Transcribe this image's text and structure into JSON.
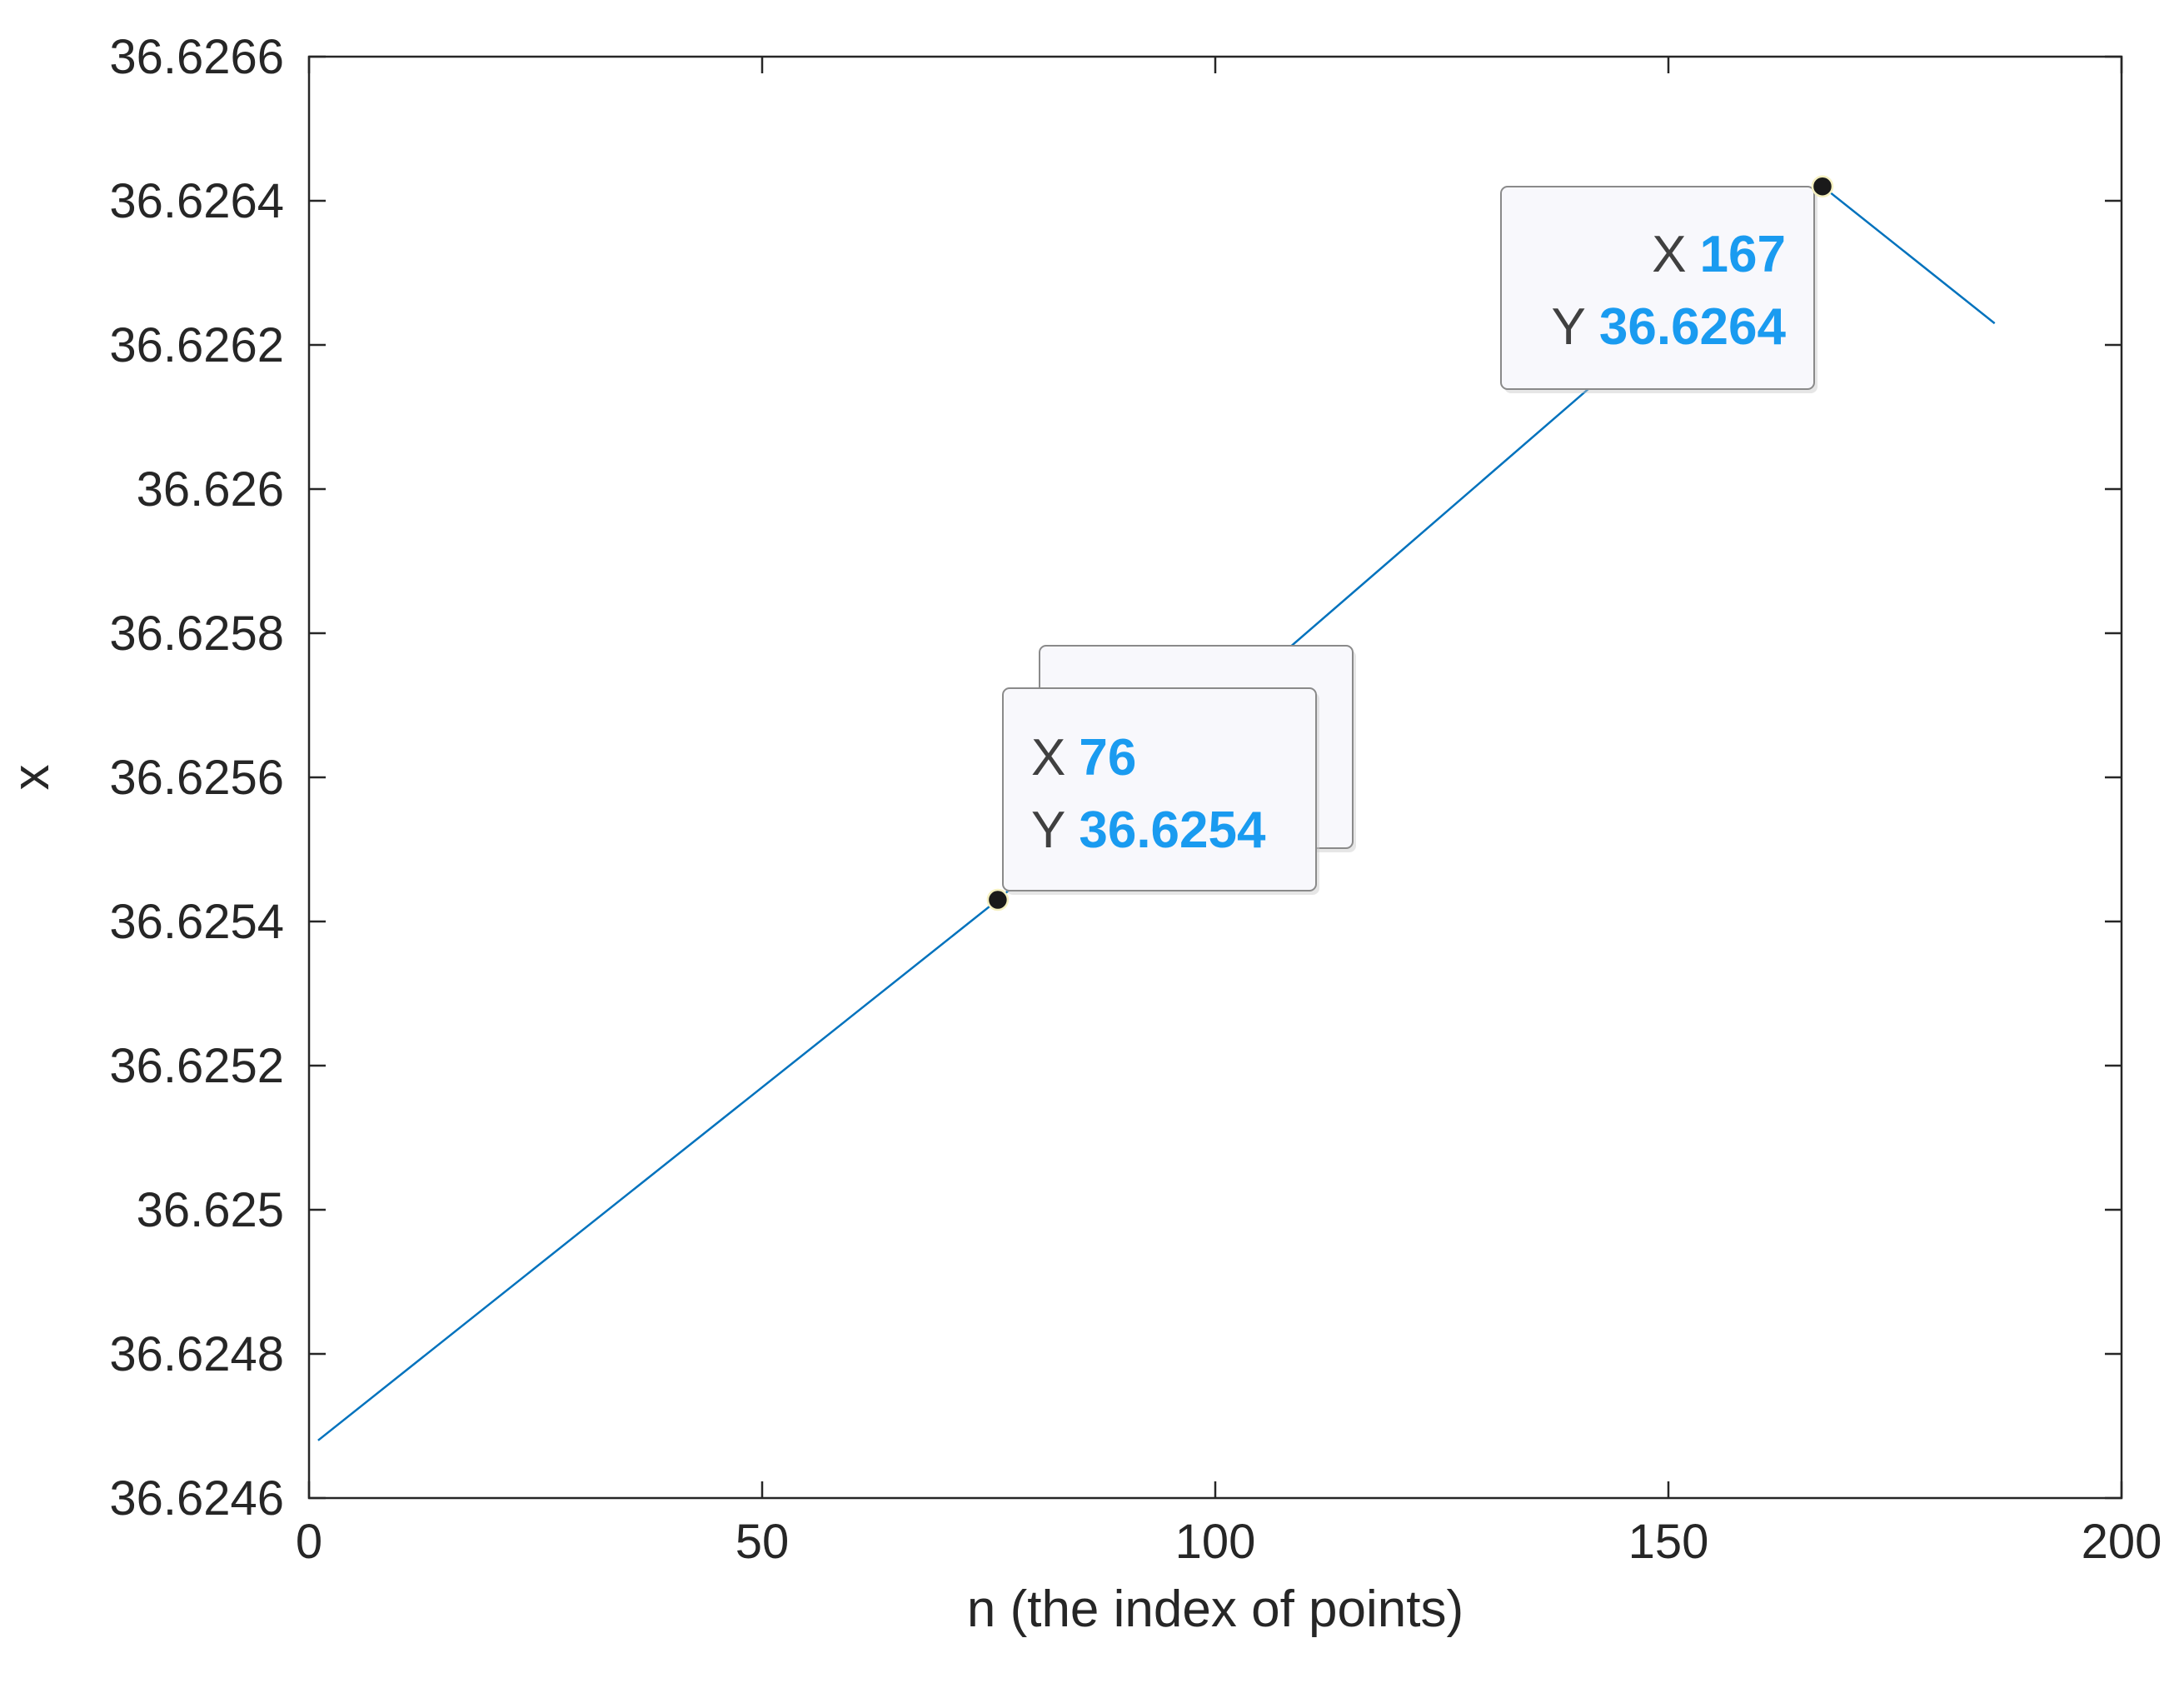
{
  "chart_data": {
    "type": "line",
    "title": "",
    "xlabel": "n (the index of points)",
    "ylabel": "x",
    "xlim": [
      0,
      200
    ],
    "ylim": [
      36.6246,
      36.6266
    ],
    "x_ticks": [
      0,
      50,
      100,
      150,
      200
    ],
    "x_tick_labels": [
      "0",
      "50",
      "100",
      "150",
      "200"
    ],
    "y_ticks": [
      36.6246,
      36.6248,
      36.625,
      36.6252,
      36.6254,
      36.6256,
      36.6258,
      36.626,
      36.6262,
      36.6264,
      36.6266
    ],
    "y_tick_labels": [
      "36.6246",
      "36.6248",
      "36.625",
      "36.6252",
      "36.6254",
      "36.6256",
      "36.6258",
      "36.626",
      "36.6262",
      "36.6264",
      "36.6266"
    ],
    "grid": false,
    "series": [
      {
        "color": "#0072bd",
        "x": [
          1,
          76,
          167,
          186
        ],
        "y": [
          36.62468,
          36.62543,
          36.62642,
          36.62623
        ]
      }
    ],
    "datatips": [
      {
        "x_key": "X",
        "y_key": "Y",
        "x_value": "76",
        "y_value": "36.6254",
        "x": 76,
        "y": 36.62543
      },
      {
        "x_key": "X",
        "y_key": "Y",
        "x_value": "167",
        "y_value": "36.6264",
        "x": 167,
        "y": 36.62642
      }
    ]
  }
}
